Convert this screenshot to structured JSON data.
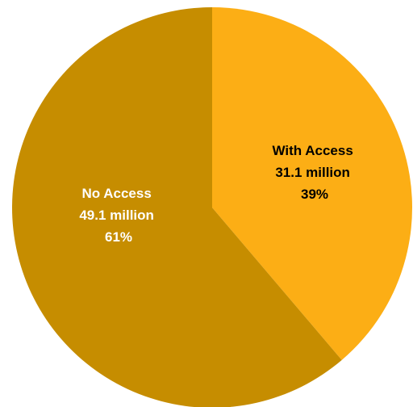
{
  "chart_data": {
    "type": "pie",
    "title": "",
    "slices": [
      {
        "name": "With Access",
        "value": 31.1,
        "percent": 39,
        "color": "#FCAE15",
        "label_color": "#000000",
        "label_lines": [
          "With Access",
          "31.1 million",
          "39%"
        ]
      },
      {
        "name": "No Access",
        "value": 49.1,
        "percent": 61,
        "color": "#C68D00",
        "label_color": "#FFFFFF",
        "label_lines": [
          "No Access",
          "49.1 million",
          "61%"
        ]
      }
    ],
    "start_angle": "12 o'clock",
    "direction": "clockwise"
  }
}
